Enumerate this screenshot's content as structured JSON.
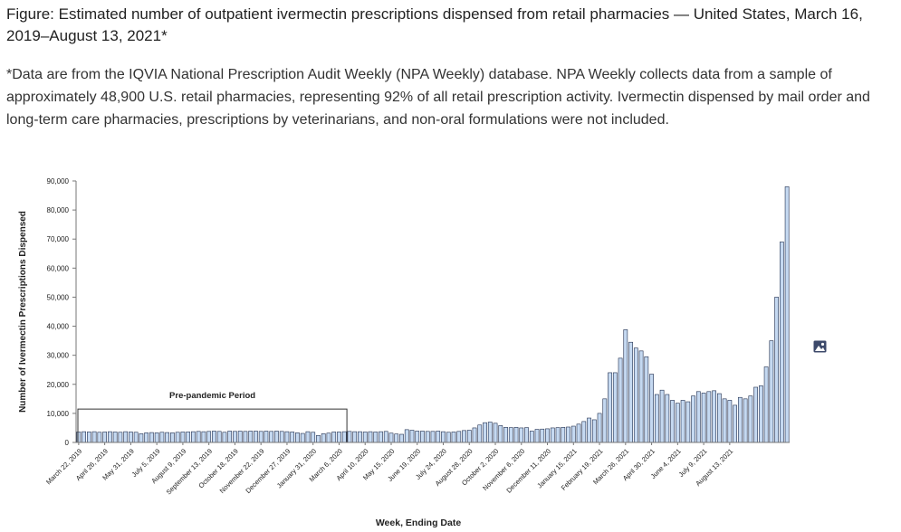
{
  "figure": {
    "title": "Figure: Estimated number of outpatient ivermectin prescriptions dispensed from retail pharmacies — United States, March 16, 2019–August 13, 2021*",
    "note": "*Data are from the IQVIA National Prescription Audit Weekly (NPA Weekly) database. NPA Weekly collects data from a sample of approximately 48,900 U.S. retail pharmacies, representing 92% of all retail prescription activity. Ivermectin dispensed by mail order and long-term care pharmacies, prescriptions by veterinarians, and non-oral formulations were not included."
  },
  "icons": {
    "image": "image-icon"
  },
  "chart_data": {
    "type": "bar",
    "xlabel": "Week, Ending Date",
    "ylabel": "Number of Ivermectin Prescriptions Dispensed",
    "ylim": [
      0,
      90000
    ],
    "yticks": [
      "0",
      "10,000",
      "20,000",
      "30,000",
      "40,000",
      "50,000",
      "60,000",
      "70,000",
      "80,000",
      "90,000"
    ],
    "grid": false,
    "bar_color": "#c5d9f1",
    "bar_edge_color": "#1f2d4d",
    "tick_labels": [
      "March 22, 2019",
      "April 26, 2019",
      "May 31, 2019",
      "July 5, 2019",
      "August 9, 2019",
      "September 13, 2019",
      "October 18, 2019",
      "November 22, 2019",
      "December 27, 2019",
      "January 31, 2020",
      "March 6, 2020",
      "April 10, 2020",
      "May 15, 2020",
      "June 19, 2020",
      "July 24, 2020",
      "August 28, 2020",
      "October 2, 2020",
      "November 6, 2020",
      "December 11, 2020",
      "January 15, 2021",
      "February 19, 2021",
      "March 26, 2021",
      "April 30, 2021",
      "June 4, 2021",
      "July 9, 2021",
      "August 13, 2021"
    ],
    "annotation": {
      "label": "Pre-pandemic Period",
      "start_week": 0,
      "end_week": 51,
      "value": 11500
    },
    "values": [
      3600,
      3700,
      3600,
      3700,
      3500,
      3600,
      3700,
      3600,
      3500,
      3700,
      3600,
      3500,
      3000,
      3300,
      3400,
      3300,
      3500,
      3400,
      3300,
      3500,
      3600,
      3600,
      3700,
      3800,
      3700,
      3800,
      3900,
      3800,
      3500,
      3900,
      3800,
      3900,
      3800,
      3900,
      3900,
      3800,
      3900,
      3800,
      3900,
      3800,
      3700,
      3600,
      3300,
      3100,
      3700,
      3500,
      2400,
      3000,
      3200,
      3600,
      3600,
      3700,
      3800,
      3700,
      3700,
      3600,
      3700,
      3600,
      3700,
      3800,
      3200,
      2900,
      2800,
      4400,
      4200,
      3900,
      3900,
      3800,
      3800,
      3900,
      3700,
      3500,
      3600,
      3800,
      4100,
      4200,
      5000,
      6000,
      6800,
      7000,
      6600,
      5800,
      5200,
      5100,
      5200,
      5000,
      5100,
      3900,
      4500,
      4600,
      4700,
      5000,
      5100,
      5200,
      5300,
      5600,
      6300,
      7200,
      8400,
      7800,
      10000,
      15000,
      24000,
      24000,
      29000,
      38800,
      34500,
      32500,
      31500,
      29500,
      23500,
      16500,
      18000,
      16500,
      14500,
      13500,
      14500,
      14000,
      16000,
      17500,
      17000,
      17500,
      17800,
      16800,
      15000,
      14500,
      12800,
      15500,
      15000,
      16000,
      19000,
      19500,
      26000,
      35000,
      50000,
      69000,
      88000
    ]
  }
}
